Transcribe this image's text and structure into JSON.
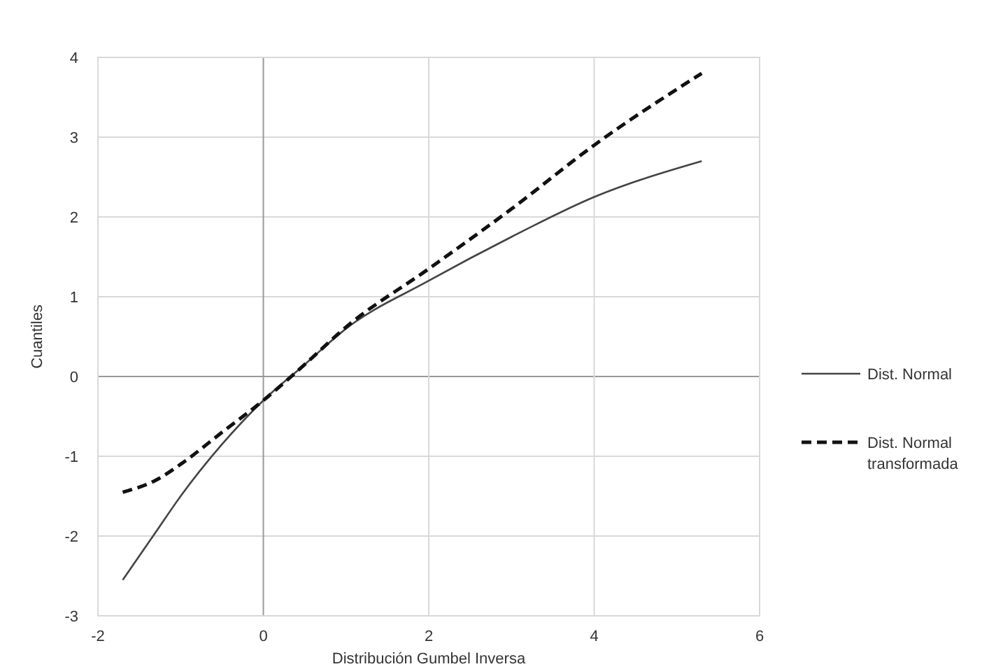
{
  "chart_data": {
    "type": "line",
    "xlabel": "Distribución Gumbel Inversa",
    "ylabel": "Cuantiles",
    "xlim": [
      -2,
      6
    ],
    "xticks": [
      -2,
      0,
      2,
      4,
      6
    ],
    "ylim": [
      -3,
      4
    ],
    "yticks": [
      -3,
      -2,
      -1,
      0,
      1,
      2,
      3,
      4
    ],
    "grid": true,
    "legend": "right",
    "series": [
      {
        "name": "Dist. Normal",
        "color": "#444444",
        "line_style": "solid",
        "x": [
          -1.7,
          -1.3,
          -1,
          -0.5,
          0,
          0.5,
          1,
          2,
          3,
          4,
          5.3
        ],
        "values": [
          -2.55,
          -1.95,
          -1.5,
          -0.85,
          -0.3,
          0.15,
          0.6,
          1.2,
          1.75,
          2.25,
          2.7
        ]
      },
      {
        "name": "Dist. Normal transformada",
        "color": "#111111",
        "line_style": "dashed",
        "x": [
          -1.7,
          -1.3,
          -1,
          -0.5,
          0,
          0.5,
          1,
          2,
          3,
          4,
          5.3
        ],
        "values": [
          -1.45,
          -1.3,
          -1.1,
          -0.7,
          -0.3,
          0.15,
          0.62,
          1.35,
          2.1,
          2.9,
          3.8
        ]
      }
    ]
  }
}
